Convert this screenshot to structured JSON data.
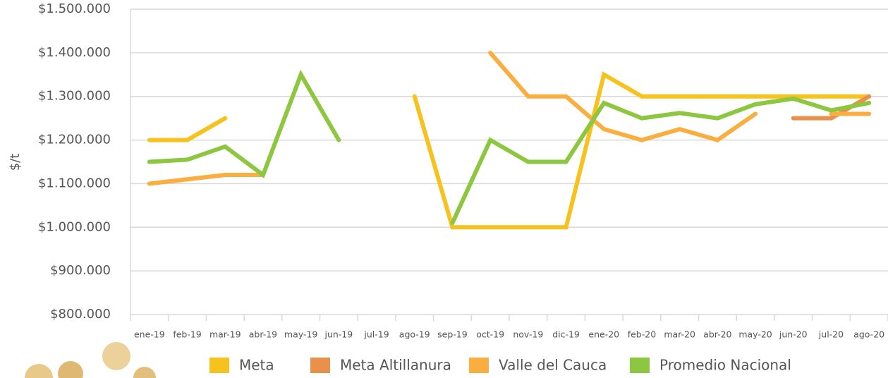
{
  "chart_data": {
    "type": "line",
    "y_label": "$/t",
    "categories": [
      "ene-19",
      "feb-19",
      "mar-19",
      "abr-19",
      "may-19",
      "jun-19",
      "jul-19",
      "ago-19",
      "sep-19",
      "oct-19",
      "nov-19",
      "dic-19",
      "ene-20",
      "feb-20",
      "mar-20",
      "abr-20",
      "may-20",
      "jun-20",
      "jul-20",
      "ago-20"
    ],
    "series": [
      {
        "name": "Meta",
        "color": "#f7c11e",
        "values": [
          1200000,
          1200000,
          1250000,
          null,
          null,
          null,
          null,
          1300000,
          1000000,
          1000000,
          1000000,
          1000000,
          1350000,
          1300000,
          1300000,
          1300000,
          1300000,
          1300000,
          1300000,
          1300000
        ]
      },
      {
        "name": "Meta Altillanura",
        "color": "#e8904c",
        "values": [
          null,
          null,
          null,
          null,
          null,
          null,
          null,
          null,
          null,
          null,
          null,
          null,
          null,
          null,
          null,
          null,
          null,
          1250000,
          1250000,
          1300000
        ]
      },
      {
        "name": "Valle del Cauca",
        "color": "#f9ae3f",
        "values": [
          1100000,
          1110000,
          1120000,
          1120000,
          null,
          null,
          null,
          null,
          null,
          1400000,
          1300000,
          1300000,
          1225000,
          1200000,
          1225000,
          1200000,
          1260000,
          null,
          1260000,
          1260000
        ]
      },
      {
        "name": "Promedio Nacional",
        "color": "#8dc63f",
        "values": [
          1150000,
          1155000,
          1185000,
          1120000,
          1350000,
          1200000,
          null,
          null,
          1010000,
          1200000,
          1150000,
          1150000,
          1285000,
          1250000,
          1262000,
          1250000,
          1282000,
          1295000,
          1268000,
          1285000
        ]
      }
    ],
    "ylim": [
      800000,
      1500000
    ],
    "yticks": [
      {
        "value": 800000,
        "label": "$800.000"
      },
      {
        "value": 900000,
        "label": "$900.000"
      },
      {
        "value": 1000000,
        "label": "$1.000.000"
      },
      {
        "value": 1100000,
        "label": "$1.100.000"
      },
      {
        "value": 1200000,
        "label": "$1.200.000"
      },
      {
        "value": 1300000,
        "label": "$1.300.000"
      },
      {
        "value": 1400000,
        "label": "$1.400.000"
      },
      {
        "value": 1500000,
        "label": "$1.500.000"
      }
    ],
    "grid": true
  }
}
